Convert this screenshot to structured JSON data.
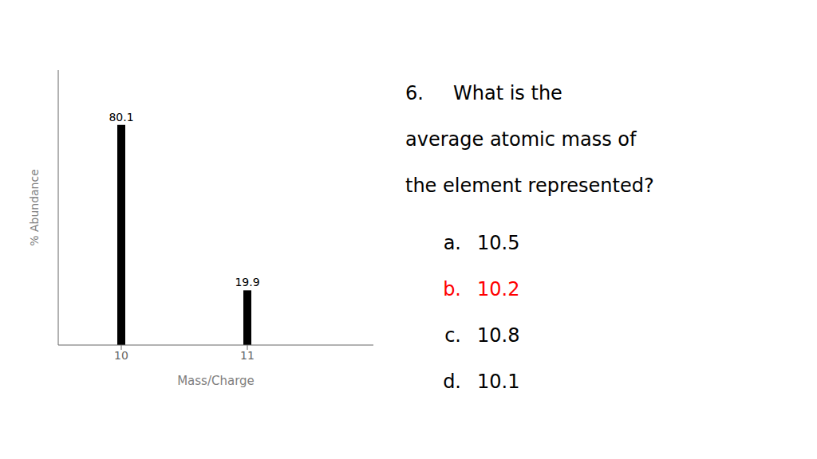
{
  "chart_data": {
    "type": "bar",
    "x": [
      10,
      11
    ],
    "values": [
      80.1,
      19.9
    ],
    "color": "#000000",
    "xlabel": "Mass/Charge",
    "ylabel": "% Abundance",
    "xlim": [
      9.5,
      12.0
    ],
    "xticks": [
      10,
      11
    ],
    "ylim": [
      0,
      100
    ],
    "tick_labels": "x",
    "data_labels": true,
    "grid": false,
    "annotations": [
      [
        {
          "text": "6.",
          "color": "#000000"
        },
        {
          "text": "What is the",
          "color": "#000000"
        }
      ],
      [
        {
          "text": "average atomic mass of",
          "color": "#000000"
        }
      ],
      [
        {
          "text": "the element represented?",
          "color": "#000000"
        }
      ],
      [
        {
          "text": "a.",
          "color": "#000000"
        },
        {
          "text": "10.5",
          "color": "#000000"
        }
      ],
      [
        {
          "text": "b.",
          "color": "#ff0000"
        },
        {
          "text": "10.2",
          "color": "#ff0000"
        }
      ],
      [
        {
          "text": "c.",
          "color": "#000000"
        },
        {
          "text": "10.8",
          "color": "#000000"
        }
      ],
      [
        {
          "text": "d.",
          "color": "#000000"
        },
        {
          "text": "10.1",
          "color": "#000000"
        }
      ]
    ]
  }
}
